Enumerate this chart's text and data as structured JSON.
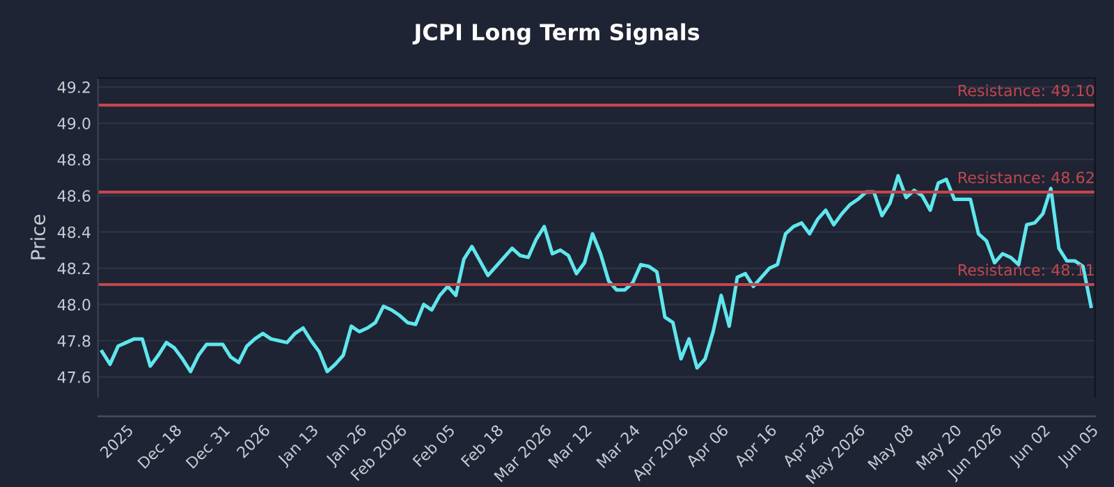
{
  "chart_data": {
    "type": "line",
    "title": "JCPI Long Term Signals",
    "ylabel": "Price",
    "categories": [
      null,
      null,
      null,
      "2025",
      null,
      null,
      null,
      null,
      null,
      "Dec 18",
      null,
      null,
      null,
      null,
      null,
      "Dec 31",
      null,
      null,
      null,
      null,
      "2026",
      null,
      null,
      null,
      null,
      null,
      "Jan 13",
      null,
      null,
      null,
      null,
      null,
      "Jan 26",
      null,
      null,
      null,
      null,
      "Feb 2026",
      null,
      null,
      null,
      null,
      null,
      "Feb 05",
      null,
      null,
      null,
      null,
      null,
      "Feb 18",
      null,
      null,
      null,
      null,
      null,
      "Mar 2026",
      null,
      null,
      null,
      null,
      "Mar 12",
      null,
      null,
      null,
      null,
      null,
      "Mar 24",
      null,
      null,
      null,
      null,
      null,
      "Apr 2026",
      null,
      null,
      null,
      null,
      "Apr 06",
      null,
      null,
      null,
      null,
      null,
      "Apr 16",
      null,
      null,
      null,
      null,
      null,
      "Apr 28",
      null,
      null,
      null,
      null,
      "May 2026",
      null,
      null,
      null,
      null,
      null,
      "May 08",
      null,
      null,
      null,
      null,
      null,
      "May 20",
      null,
      null,
      null,
      null,
      "Jun 2026",
      null,
      null,
      null,
      null,
      null,
      "Jun 02",
      null,
      null,
      null,
      null,
      null,
      "Jun 05"
    ],
    "series": [
      {
        "color": "#5fe6ee",
        "values": [
          47.74,
          47.67,
          47.77,
          47.79,
          47.81,
          47.81,
          47.66,
          47.72,
          47.79,
          47.76,
          47.7,
          47.63,
          47.72,
          47.78,
          47.78,
          47.78,
          47.71,
          47.68,
          47.77,
          47.81,
          47.84,
          47.81,
          47.8,
          47.79,
          47.84,
          47.87,
          47.8,
          47.74,
          47.63,
          47.67,
          47.72,
          47.88,
          47.85,
          47.87,
          47.9,
          47.99,
          47.97,
          47.94,
          47.9,
          47.89,
          48.0,
          47.97,
          48.05,
          48.1,
          48.05,
          48.25,
          48.32,
          48.24,
          48.16,
          48.21,
          48.26,
          48.31,
          48.27,
          48.26,
          48.36,
          48.43,
          48.28,
          48.3,
          48.27,
          48.17,
          48.23,
          48.39,
          48.28,
          48.13,
          48.08,
          48.08,
          48.12,
          48.22,
          48.21,
          48.18,
          47.93,
          47.9,
          47.7,
          47.81,
          47.65,
          47.7,
          47.85,
          48.05,
          47.88,
          48.15,
          48.17,
          48.1,
          48.15,
          48.2,
          48.22,
          48.39,
          48.43,
          48.45,
          48.39,
          48.47,
          48.52,
          48.44,
          48.5,
          48.55,
          48.58,
          48.62,
          48.62,
          48.49,
          48.56,
          48.71,
          48.59,
          48.63,
          48.6,
          48.52,
          48.67,
          48.69,
          48.58,
          48.58,
          48.58,
          48.39,
          48.35,
          48.23,
          48.28,
          48.26,
          48.22,
          48.44,
          48.45,
          48.5,
          48.64,
          48.31,
          48.24,
          48.24,
          48.21,
          47.99
        ]
      }
    ],
    "ylim": [
      47.49,
      49.25
    ],
    "yticks": [
      47.6,
      47.8,
      {
        "value": 48.0,
        "label": "48.0"
      },
      48.2,
      48.4,
      48.6,
      48.8,
      {
        "value": 49.0,
        "label": "49.0"
      },
      49.2
    ],
    "grid": "y",
    "ref_lines": [
      {
        "axis": "y",
        "value": 49.1,
        "label": "Resistance: 49.10",
        "color": "#c4464f"
      },
      {
        "axis": "y",
        "value": 48.62,
        "label": "Resistance: 48.62",
        "color": "#c4464f"
      },
      {
        "axis": "y",
        "value": 48.11,
        "label": "Resistance: 48.11",
        "color": "#c4464f"
      }
    ]
  }
}
